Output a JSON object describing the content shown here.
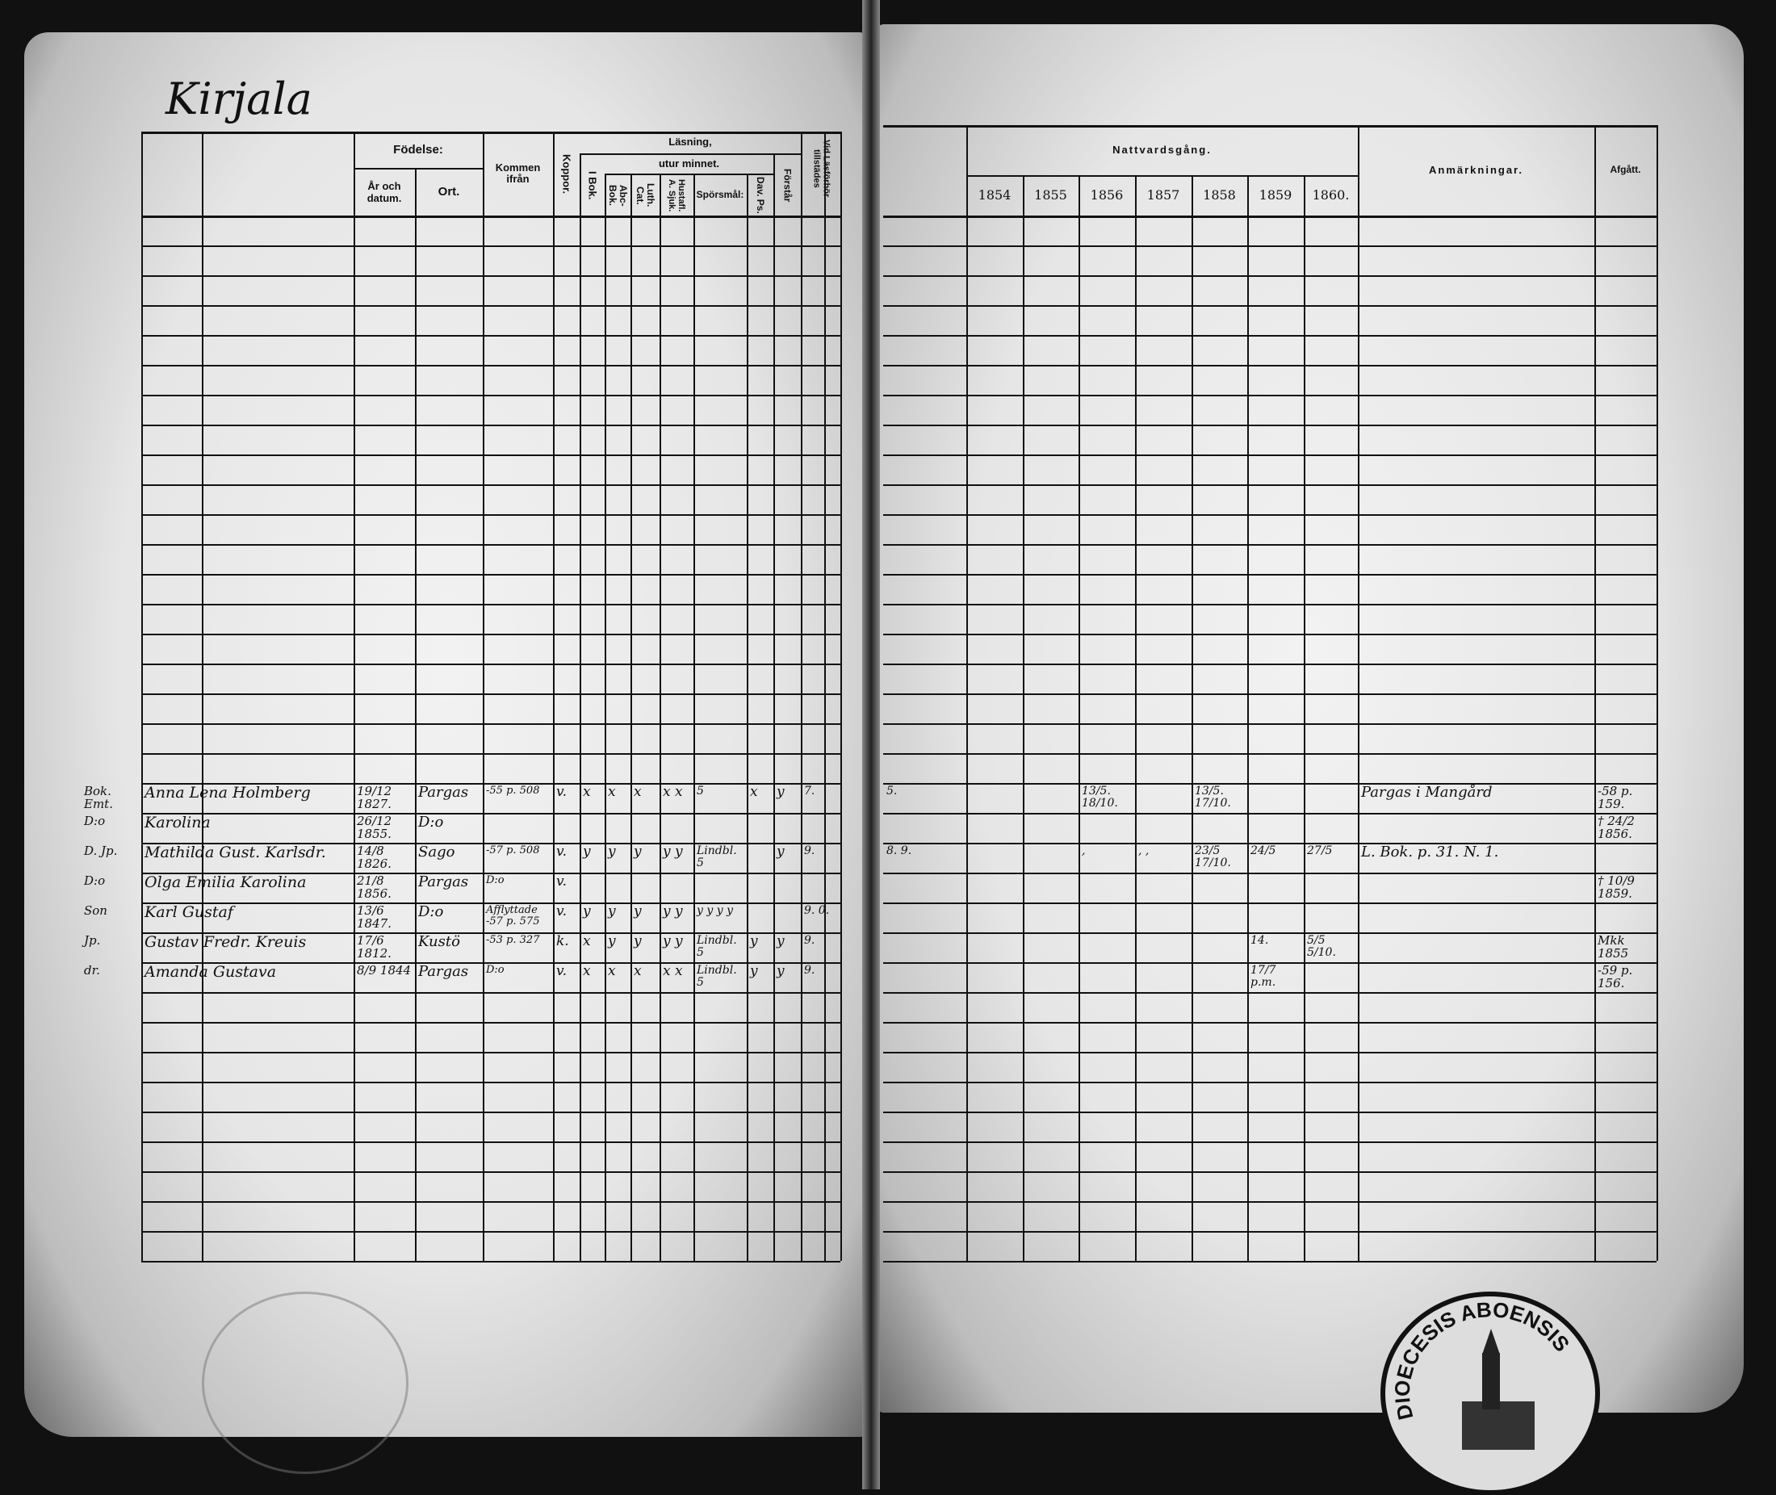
{
  "left_page": {
    "place_title": "Kirjala",
    "headers": {
      "fodelse": "Födelse:",
      "ar": "År och datum.",
      "ort": "Ort.",
      "kommen": "Kommen ifrån",
      "koppor": "Koppor.",
      "lasning": "Läsning,",
      "utur": "utur minnet.",
      "i_bok": "I Bok.",
      "abc": "Abc-Bok.",
      "luth": "Luth. Cat.",
      "hustafl": "Hustafl. A. Sjuk.",
      "sporsmal": "Spörsmål:",
      "dav": "Dav. Ps.",
      "forstar": "Förstår",
      "vid": "Vid Läsförhör tillstädes"
    },
    "entries": [
      {
        "prefix": "Bok. Emt.",
        "name": "Anna Lena Holmberg",
        "date": "19/12 1827.",
        "place": "Pargas",
        "from": "-55 p. 508",
        "koppor": "v.",
        "i_bok": "x",
        "abc": "x",
        "luth": "x",
        "hustafl": "x x",
        "sporsmal": "5",
        "dav": "x",
        "forstar": "y",
        "vid": "7."
      },
      {
        "prefix": "D:o",
        "name": "Karolina",
        "date": "26/12 1855.",
        "place": "D:o",
        "from": "",
        "koppor": "",
        "i_bok": "",
        "abc": "",
        "luth": "",
        "hustafl": "",
        "sporsmal": "",
        "dav": "",
        "forstar": "",
        "vid": ""
      },
      {
        "prefix": "D. Jp.",
        "name": "Mathilda Gust. Karlsdr.",
        "date": "14/8 1826.",
        "place": "Sago",
        "from": "-57 p. 508",
        "koppor": "v.",
        "i_bok": "y",
        "abc": "y",
        "luth": "y",
        "hustafl": "y y",
        "sporsmal": "Lindbl. 5",
        "dav": "",
        "forstar": "y",
        "vid": "9."
      },
      {
        "prefix": "D:o",
        "name": "Olga Emilia Karolina",
        "date": "21/8 1856.",
        "place": "Pargas",
        "from": "D:o",
        "koppor": "v.",
        "i_bok": "",
        "abc": "",
        "luth": "",
        "hustafl": "",
        "sporsmal": "",
        "dav": "",
        "forstar": "",
        "vid": ""
      },
      {
        "prefix": "Son",
        "name": "Karl Gustaf",
        "date": "13/6 1847.",
        "place": "D:o",
        "from": "Afflyttade -57 p. 575",
        "koppor": "v.",
        "i_bok": "y",
        "abc": "y",
        "luth": "y",
        "hustafl": "y y",
        "sporsmal": "y y y y",
        "dav": "",
        "forstar": "",
        "vid": "9. 0."
      },
      {
        "prefix": "Jp.",
        "name": "Gustav Fredr. Kreuis",
        "date": "17/6 1812.",
        "place": "Kustö",
        "from": "-53 p. 327",
        "koppor": "k.",
        "i_bok": "x",
        "abc": "y",
        "luth": "y",
        "hustafl": "y y",
        "sporsmal": "Lindbl. 5",
        "dav": "y",
        "forstar": "y",
        "vid": "9."
      },
      {
        "prefix": "dr.",
        "name": "Amanda Gustava",
        "date": "8/9 1844",
        "place": "Pargas",
        "from": "D:o",
        "koppor": "v.",
        "i_bok": "x",
        "abc": "x",
        "luth": "x",
        "hustafl": "x x",
        "sporsmal": "Lindbl. 5",
        "dav": "y",
        "forstar": "y",
        "vid": "9."
      }
    ]
  },
  "right_page": {
    "headers": {
      "nattvard": "Nattvardsgång.",
      "years": [
        "1854",
        "1855",
        "1856",
        "1857",
        "1858",
        "1859",
        "1860."
      ],
      "anm": "Anmärkningar.",
      "afgatt": "Afgått."
    },
    "entries": [
      {
        "pre": "5.",
        "y1854": "",
        "y1855": "",
        "y1856": "13/5. 18/10.",
        "y1857": "",
        "y1858": "13/5. 17/10.",
        "y1859": "",
        "y1860": "",
        "anm": "Pargas i Mangård",
        "afgatt": "-58 p. 159."
      },
      {
        "pre": "",
        "y1854": "",
        "y1855": "",
        "y1856": "",
        "y1857": "",
        "y1858": "",
        "y1859": "",
        "y1860": "",
        "anm": "",
        "afgatt": "† 24/2 1856."
      },
      {
        "pre": "8. 9.",
        "y1854": "",
        "y1855": "",
        "y1856": ",",
        "y1857": ", ,",
        "y1858": "23/5 17/10.",
        "y1859": "24/5",
        "y1860": "27/5",
        "anm": "L. Bok. p. 31. N. 1.",
        "afgatt": ""
      },
      {
        "pre": "",
        "y1854": "",
        "y1855": "",
        "y1856": "",
        "y1857": "",
        "y1858": "",
        "y1859": "",
        "y1860": "",
        "anm": "",
        "afgatt": "† 10/9 1859."
      },
      {
        "pre": "",
        "y1854": "",
        "y1855": "",
        "y1856": "",
        "y1857": "",
        "y1858": "",
        "y1859": "",
        "y1860": "",
        "anm": "",
        "afgatt": ""
      },
      {
        "pre": "",
        "y1854": "",
        "y1855": "",
        "y1856": "",
        "y1857": "",
        "y1858": "",
        "y1859": "14.",
        "y1860": "5/5 5/10.",
        "anm": "",
        "afgatt": "Mkk 1855"
      },
      {
        "pre": "",
        "y1854": "",
        "y1855": "",
        "y1856": "",
        "y1857": "",
        "y1858": "",
        "y1859": "17/7 p.m.",
        "y1860": "",
        "anm": "",
        "afgatt": "-59 p. 156."
      }
    ]
  },
  "stamp": {
    "text": "DIOECESIS ABOENSIS"
  },
  "colors": {
    "ink": "#111111",
    "paper": "#e8e8e8",
    "border": "#111111"
  }
}
